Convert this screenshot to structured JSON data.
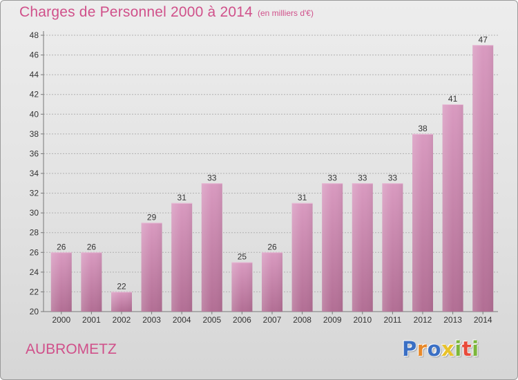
{
  "header": {
    "title": "Charges de Personnel 2000 à 2014",
    "subtitle": "(en milliers d'€)"
  },
  "footer": {
    "commune": "AUBROMETZ",
    "logo_text": "Proxiti",
    "logo_letters": [
      {
        "char": "P",
        "color": "#3a6fc4"
      },
      {
        "char": "r",
        "color": "#e8892a"
      },
      {
        "char": "o",
        "color": "#3a6fc4"
      },
      {
        "char": "x",
        "color": "#e8c22a"
      },
      {
        "char": "i",
        "color": "#7bb63a"
      },
      {
        "char": "t",
        "color": "#e84a3a"
      },
      {
        "char": "i",
        "color": "#7bb63a"
      }
    ]
  },
  "colors": {
    "accent": "#d0508a",
    "bar_top": "#d99ac0",
    "bar_bottom": "#b26e94",
    "grid": "#b0b0b0",
    "text": "#333333"
  },
  "chart_data": {
    "type": "bar",
    "title": "Charges de Personnel 2000 à 2014",
    "subtitle": "(en milliers d'€)",
    "categories": [
      "2000",
      "2001",
      "2002",
      "2003",
      "2004",
      "2005",
      "2006",
      "2007",
      "2008",
      "2009",
      "2010",
      "2011",
      "2012",
      "2013",
      "2014"
    ],
    "values": [
      26,
      26,
      22,
      29,
      31,
      33,
      25,
      26,
      31,
      33,
      33,
      33,
      38,
      41,
      47
    ],
    "data_labels": [
      "26",
      "26",
      "22",
      "29",
      "31",
      "33",
      "25",
      "26",
      "31",
      "33",
      "33",
      "33",
      "38",
      "41",
      "47"
    ],
    "ylim": [
      20,
      48
    ],
    "yticks": [
      "20",
      "22",
      "24",
      "26",
      "28",
      "30",
      "32",
      "34",
      "36",
      "38",
      "40",
      "42",
      "44",
      "46",
      "48"
    ],
    "xlabel": "",
    "ylabel": "",
    "grid": true
  }
}
